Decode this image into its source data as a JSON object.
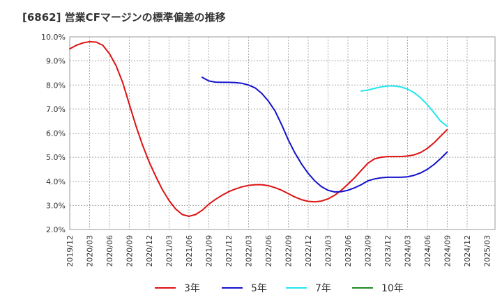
{
  "title": "[6862]  営業CFマージンの標準偏差の推移",
  "chart_data": {
    "type": "line",
    "title": "[6862]  営業CFマージンの標準偏差の推移",
    "xlabel": "",
    "ylabel": "",
    "ylim": [
      2.0,
      10.0
    ],
    "y_ticks": [
      "2.0%",
      "3.0%",
      "4.0%",
      "5.0%",
      "6.0%",
      "7.0%",
      "8.0%",
      "9.0%",
      "10.0%"
    ],
    "x_ticks": [
      "2019/12",
      "2020/03",
      "2020/06",
      "2020/09",
      "2020/12",
      "2021/03",
      "2021/06",
      "2021/09",
      "2021/12",
      "2022/03",
      "2022/06",
      "2022/09",
      "2022/12",
      "2023/03",
      "2023/06",
      "2023/09",
      "2023/12",
      "2024/03",
      "2024/06",
      "2024/09",
      "2024/12",
      "2025/03"
    ],
    "grid": true,
    "legend_position": "bottom",
    "series": [
      {
        "name": "3年",
        "color": "#dd1111",
        "points": [
          [
            "2019/12",
            9.5
          ],
          [
            "2020/01",
            9.65
          ],
          [
            "2020/02",
            9.75
          ],
          [
            "2020/03",
            9.8
          ],
          [
            "2020/04",
            9.78
          ],
          [
            "2020/05",
            9.65
          ],
          [
            "2020/06",
            9.3
          ],
          [
            "2020/07",
            8.8
          ],
          [
            "2020/08",
            8.1
          ],
          [
            "2020/09",
            7.2
          ],
          [
            "2020/10",
            6.3
          ],
          [
            "2020/11",
            5.5
          ],
          [
            "2020/12",
            4.8
          ],
          [
            "2021/01",
            4.2
          ],
          [
            "2021/02",
            3.65
          ],
          [
            "2021/03",
            3.2
          ],
          [
            "2021/04",
            2.85
          ],
          [
            "2021/05",
            2.62
          ],
          [
            "2021/06",
            2.55
          ],
          [
            "2021/07",
            2.62
          ],
          [
            "2021/08",
            2.8
          ],
          [
            "2021/09",
            3.05
          ],
          [
            "2021/10",
            3.25
          ],
          [
            "2021/11",
            3.42
          ],
          [
            "2021/12",
            3.57
          ],
          [
            "2022/01",
            3.68
          ],
          [
            "2022/02",
            3.77
          ],
          [
            "2022/03",
            3.83
          ],
          [
            "2022/04",
            3.86
          ],
          [
            "2022/05",
            3.86
          ],
          [
            "2022/06",
            3.82
          ],
          [
            "2022/07",
            3.74
          ],
          [
            "2022/08",
            3.63
          ],
          [
            "2022/09",
            3.49
          ],
          [
            "2022/10",
            3.35
          ],
          [
            "2022/11",
            3.24
          ],
          [
            "2022/12",
            3.17
          ],
          [
            "2023/01",
            3.15
          ],
          [
            "2023/02",
            3.18
          ],
          [
            "2023/03",
            3.27
          ],
          [
            "2023/04",
            3.42
          ],
          [
            "2023/05",
            3.63
          ],
          [
            "2023/06",
            3.88
          ],
          [
            "2023/07",
            4.15
          ],
          [
            "2023/08",
            4.45
          ],
          [
            "2023/09",
            4.75
          ],
          [
            "2023/10",
            4.93
          ],
          [
            "2023/11",
            5.0
          ],
          [
            "2023/12",
            5.03
          ],
          [
            "2024/01",
            5.03
          ],
          [
            "2024/02",
            5.03
          ],
          [
            "2024/03",
            5.05
          ],
          [
            "2024/04",
            5.1
          ],
          [
            "2024/05",
            5.2
          ],
          [
            "2024/06",
            5.37
          ],
          [
            "2024/07",
            5.6
          ],
          [
            "2024/08",
            5.88
          ],
          [
            "2024/09",
            6.15
          ]
        ]
      },
      {
        "name": "5年",
        "color": "#1111cc",
        "points": [
          [
            "2021/08",
            8.32
          ],
          [
            "2021/09",
            8.17
          ],
          [
            "2021/10",
            8.12
          ],
          [
            "2021/11",
            8.11
          ],
          [
            "2021/12",
            8.11
          ],
          [
            "2022/01",
            8.1
          ],
          [
            "2022/02",
            8.07
          ],
          [
            "2022/03",
            8.0
          ],
          [
            "2022/04",
            7.88
          ],
          [
            "2022/05",
            7.65
          ],
          [
            "2022/06",
            7.33
          ],
          [
            "2022/07",
            6.92
          ],
          [
            "2022/08",
            6.35
          ],
          [
            "2022/09",
            5.72
          ],
          [
            "2022/10",
            5.18
          ],
          [
            "2022/11",
            4.72
          ],
          [
            "2022/12",
            4.33
          ],
          [
            "2023/01",
            4.02
          ],
          [
            "2023/02",
            3.78
          ],
          [
            "2023/03",
            3.63
          ],
          [
            "2023/04",
            3.56
          ],
          [
            "2023/05",
            3.57
          ],
          [
            "2023/06",
            3.63
          ],
          [
            "2023/07",
            3.73
          ],
          [
            "2023/08",
            3.86
          ],
          [
            "2023/09",
            4.02
          ],
          [
            "2023/10",
            4.1
          ],
          [
            "2023/11",
            4.15
          ],
          [
            "2023/12",
            4.17
          ],
          [
            "2024/01",
            4.17
          ],
          [
            "2024/02",
            4.17
          ],
          [
            "2024/03",
            4.19
          ],
          [
            "2024/04",
            4.25
          ],
          [
            "2024/05",
            4.35
          ],
          [
            "2024/06",
            4.5
          ],
          [
            "2024/07",
            4.7
          ],
          [
            "2024/08",
            4.95
          ],
          [
            "2024/09",
            5.22
          ]
        ]
      },
      {
        "name": "7年",
        "color": "#22e6ee",
        "points": [
          [
            "2023/08",
            7.75
          ],
          [
            "2023/09",
            7.79
          ],
          [
            "2023/10",
            7.86
          ],
          [
            "2023/11",
            7.92
          ],
          [
            "2023/12",
            7.96
          ],
          [
            "2024/01",
            7.96
          ],
          [
            "2024/02",
            7.92
          ],
          [
            "2024/03",
            7.83
          ],
          [
            "2024/04",
            7.68
          ],
          [
            "2024/05",
            7.46
          ],
          [
            "2024/06",
            7.18
          ],
          [
            "2024/07",
            6.85
          ],
          [
            "2024/08",
            6.5
          ],
          [
            "2024/09",
            6.28
          ]
        ]
      },
      {
        "name": "10年",
        "color": "#228822",
        "points": []
      }
    ]
  }
}
